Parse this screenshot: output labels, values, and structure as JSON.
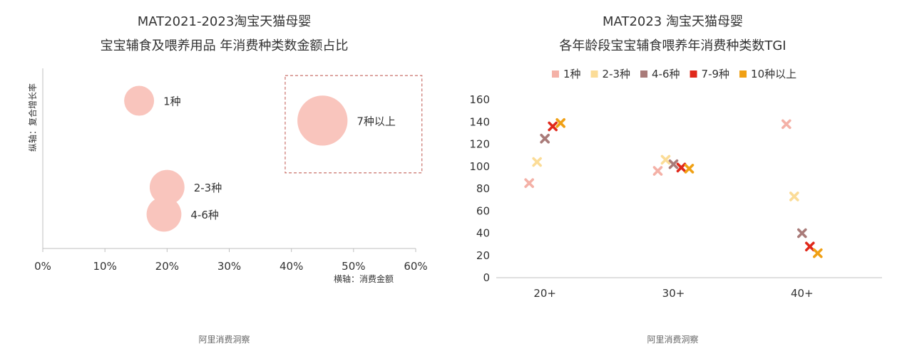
{
  "left_chart": {
    "title_line1": "MAT2021-2023淘宝天猫母婴",
    "title_line2": "宝宝辅食及喂养用品 年消费种类数金额占比",
    "source": "阿里消费洞察",
    "xlabel": "横轴：消费金额",
    "ylabel": "纵轴：复合增长率",
    "bubble_color": "#f9c5bd",
    "highlight_color": "#c9706a"
  },
  "right_chart": {
    "title_line1": "MAT2023 淘宝天猫母婴",
    "title_line2": "各年龄段宝宝辅食喂养年消费种类数TGI",
    "source": "阿里消费洞察"
  },
  "chart_data": [
    {
      "type": "scatter",
      "title": "MAT2021-2023淘宝天猫母婴 宝宝辅食及喂养用品 年消费种类数金额占比",
      "xlabel": "横轴：消费金额",
      "ylabel": "纵轴：复合增长率",
      "xlim": [
        0,
        0.6
      ],
      "x_ticks": [
        "0%",
        "10%",
        "20%",
        "30%",
        "40%",
        "50%",
        "60%"
      ],
      "y_ticks": [],
      "highlight_box": {
        "x_range": [
          0.39,
          0.61
        ],
        "y_range": [
          0.42,
          0.96
        ]
      },
      "points": [
        {
          "label": "1种",
          "x": 0.155,
          "y": 0.82,
          "size": 1.0
        },
        {
          "label": "2-3种",
          "x": 0.2,
          "y": 0.34,
          "size": 1.35
        },
        {
          "label": "4-6种",
          "x": 0.195,
          "y": 0.19,
          "size": 1.35
        },
        {
          "label": "7种以上",
          "x": 0.45,
          "y": 0.71,
          "size": 2.8
        }
      ],
      "y_range_hidden": [
        0,
        1
      ]
    },
    {
      "type": "scatter",
      "title": "MAT2023 淘宝天猫母婴 各年龄段宝宝辅食喂养年消费种类数TGI",
      "categories": [
        "20+",
        "30+",
        "40+"
      ],
      "ylim": [
        0,
        160
      ],
      "y_ticks": [
        0,
        20,
        40,
        60,
        80,
        100,
        120,
        140,
        160
      ],
      "legend_position": "top",
      "series": [
        {
          "name": "1种",
          "color": "#f4b1a7",
          "values": [
            85,
            96,
            138
          ]
        },
        {
          "name": "2-3种",
          "color": "#fbdc97",
          "values": [
            104,
            106,
            73
          ]
        },
        {
          "name": "4-6种",
          "color": "#a97b79",
          "values": [
            125,
            102,
            40
          ]
        },
        {
          "name": "7-9种",
          "color": "#e0291b",
          "values": [
            136,
            99,
            28
          ]
        },
        {
          "name": "10种以上",
          "color": "#f0a014",
          "values": [
            139,
            98,
            22
          ]
        }
      ]
    }
  ]
}
